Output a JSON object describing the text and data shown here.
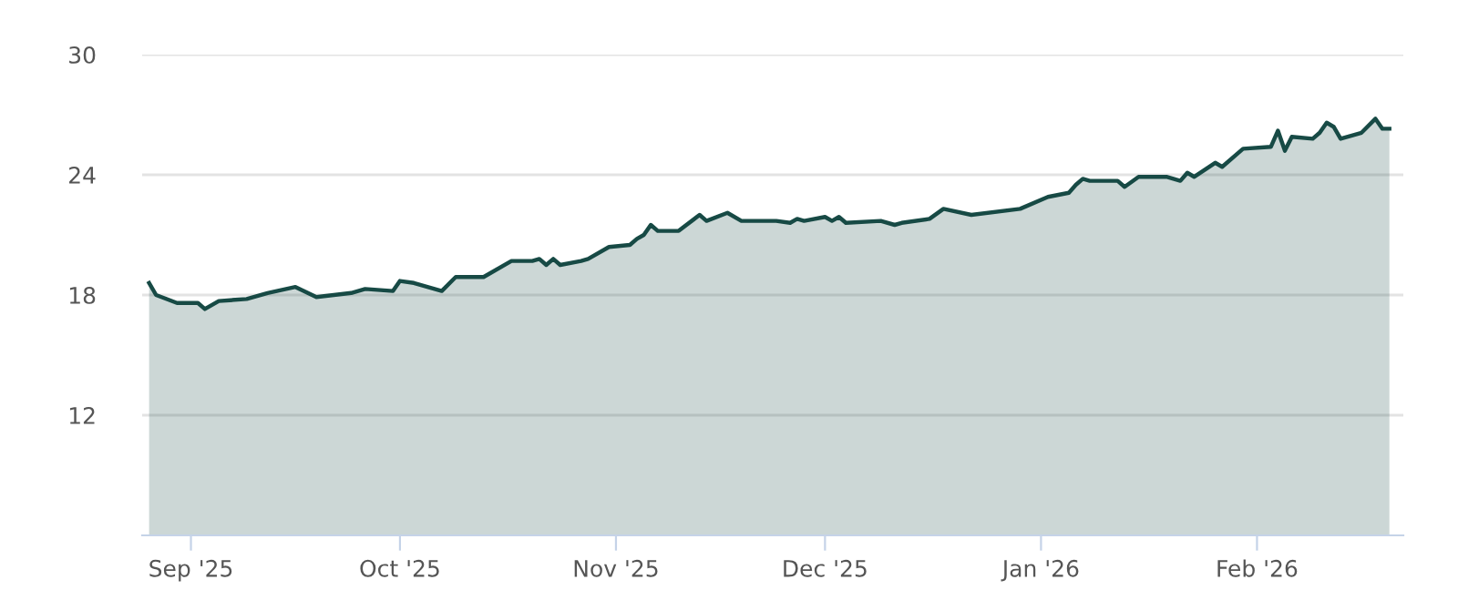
{
  "chart_data": {
    "type": "area",
    "x": [
      "2025-08-26",
      "2025-08-27",
      "2025-08-30",
      "2025-09-02",
      "2025-09-03",
      "2025-09-05",
      "2025-09-09",
      "2025-09-12",
      "2025-09-16",
      "2025-09-19",
      "2025-09-24",
      "2025-09-26",
      "2025-09-30",
      "2025-10-01",
      "2025-10-03",
      "2025-10-07",
      "2025-10-09",
      "2025-10-13",
      "2025-10-17",
      "2025-10-20",
      "2025-10-21",
      "2025-10-22",
      "2025-10-23",
      "2025-10-24",
      "2025-10-27",
      "2025-10-28",
      "2025-10-31",
      "2025-11-03",
      "2025-11-04",
      "2025-11-05",
      "2025-11-06",
      "2025-11-07",
      "2025-11-10",
      "2025-11-13",
      "2025-11-14",
      "2025-11-17",
      "2025-11-19",
      "2025-11-24",
      "2025-11-26",
      "2025-11-27",
      "2025-11-28",
      "2025-12-01",
      "2025-12-02",
      "2025-12-03",
      "2025-12-04",
      "2025-12-09",
      "2025-12-11",
      "2025-12-12",
      "2025-12-16",
      "2025-12-18",
      "2025-12-22",
      "2025-12-29",
      "2026-01-02",
      "2026-01-05",
      "2026-01-06",
      "2026-01-07",
      "2026-01-08",
      "2026-01-12",
      "2026-01-13",
      "2026-01-15",
      "2026-01-19",
      "2026-01-21",
      "2026-01-22",
      "2026-01-23",
      "2026-01-26",
      "2026-01-27",
      "2026-01-30",
      "2026-02-03",
      "2026-02-04",
      "2026-02-05",
      "2026-02-06",
      "2026-02-09",
      "2026-02-10",
      "2026-02-11",
      "2026-02-12",
      "2026-02-13",
      "2026-02-16",
      "2026-02-18",
      "2026-02-19",
      "2026-02-20"
    ],
    "series": [
      {
        "color": "#174a45",
        "values": [
          18.6,
          18.0,
          17.6,
          17.6,
          17.3,
          17.7,
          17.8,
          18.1,
          18.4,
          17.9,
          18.1,
          18.3,
          18.2,
          18.7,
          18.6,
          18.2,
          18.9,
          18.9,
          19.7,
          19.7,
          19.8,
          19.5,
          19.8,
          19.5,
          19.7,
          19.8,
          20.4,
          20.5,
          20.8,
          21.0,
          21.5,
          21.2,
          21.2,
          22.0,
          21.7,
          22.1,
          21.7,
          21.7,
          21.6,
          21.8,
          21.7,
          21.9,
          21.7,
          21.9,
          21.6,
          21.7,
          21.5,
          21.6,
          21.8,
          22.3,
          22.0,
          22.3,
          22.9,
          23.1,
          23.5,
          23.8,
          23.7,
          23.7,
          23.4,
          23.9,
          23.9,
          23.7,
          24.1,
          23.9,
          24.6,
          24.4,
          25.3,
          25.4,
          26.2,
          25.2,
          25.9,
          25.8,
          26.1,
          26.6,
          26.4,
          25.8,
          26.1,
          26.8,
          26.3,
          26.3
        ]
      }
    ],
    "xlim": [
      "2025-08-25",
      "2026-02-22"
    ],
    "xticks": [
      {
        "value": "2025-09-01",
        "label": "Sep '25"
      },
      {
        "value": "2025-10-01",
        "label": "Oct '25"
      },
      {
        "value": "2025-11-01",
        "label": "Nov '25"
      },
      {
        "value": "2025-12-01",
        "label": "Dec '25"
      },
      {
        "value": "2026-01-01",
        "label": "Jan '26"
      },
      {
        "value": "2026-02-01",
        "label": "Feb '26"
      }
    ],
    "ylim": [
      6,
      30
    ],
    "yticks": [
      12,
      18,
      24,
      30
    ],
    "grid": "y",
    "legend": false
  }
}
